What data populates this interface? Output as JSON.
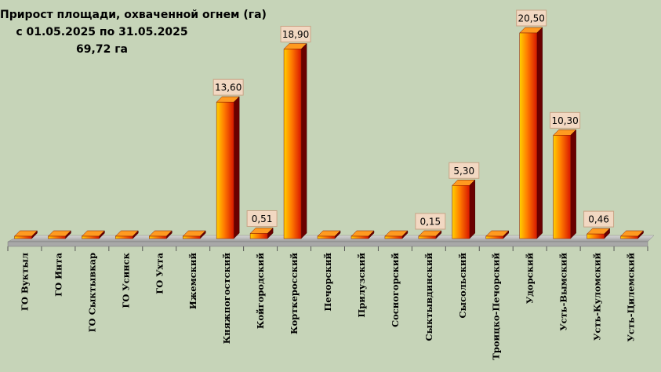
{
  "title": {
    "line1": "Прирост площади, охваченной огнем (га)",
    "line2": "с 01.05.2025  по  31.05.2025",
    "line3": "69,72 га"
  },
  "colors": {
    "background": "#c6d4b8",
    "bar_light": "#ffd400",
    "bar_mid": "#ff5a00",
    "bar_dark": "#6a0000",
    "floor": "#b0b0b0",
    "label_box": "#f2d8c2",
    "label_border": "#c8a486"
  },
  "chart_data": {
    "type": "bar",
    "title": "Прирост площади, охваченной огнем (га)",
    "categories": [
      "ГО Вуктыл",
      "ГО Инта",
      "ГО Сыктывкар",
      "ГО Усинск",
      "ГО Ухта",
      "Ижемский",
      "Княжпогостский",
      "Койгородский",
      "Корткеросский",
      "Печорский",
      "Прилузский",
      "Сосногорский",
      "Сыктывдинский",
      "Сысольский",
      "Троицко-Печорский",
      "Удорский",
      "Усть-Вымский",
      "Усть-Куломский",
      "Усть-Цилемский"
    ],
    "values": [
      0,
      0,
      0,
      0,
      0,
      0,
      13.6,
      0.51,
      18.9,
      0,
      0,
      0,
      0.15,
      5.3,
      0,
      20.5,
      10.3,
      0.46,
      0
    ],
    "value_labels": [
      "",
      "",
      "",
      "",
      "",
      "",
      "13,60",
      "0,51",
      "18,90",
      "",
      "",
      "",
      "0,15",
      "5,30",
      "",
      "20,50",
      "10,30",
      "0,46",
      ""
    ],
    "ylim": [
      0,
      22.5
    ],
    "grid": false,
    "legend": "none"
  }
}
